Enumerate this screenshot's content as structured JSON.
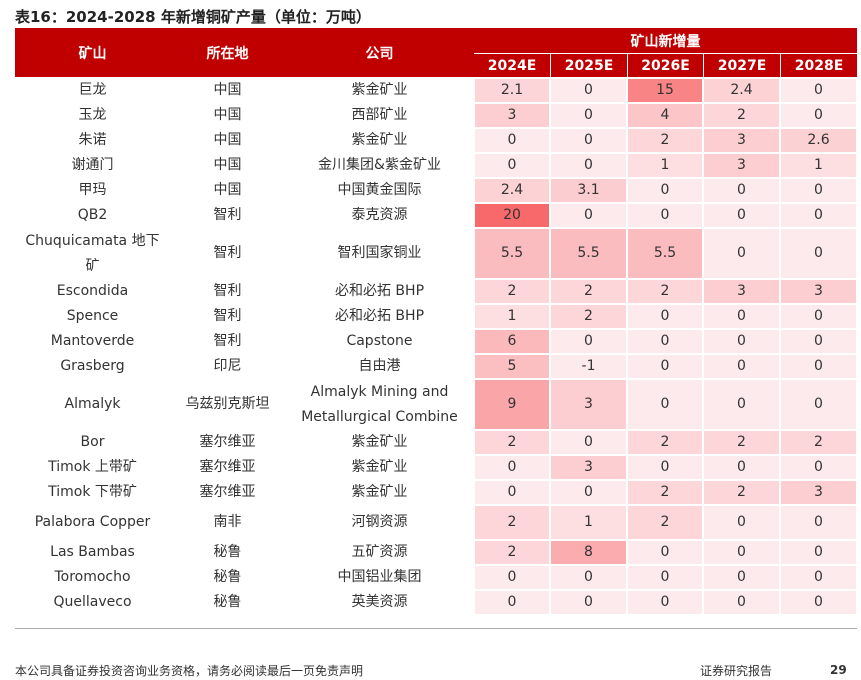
{
  "title": "表16：2024-2028 年新增铜矿产量（单位：万吨）",
  "table": {
    "columns": [
      "矿山",
      "所在地",
      "公司"
    ],
    "group_header": "矿山新增量",
    "years": [
      "2024E",
      "2025E",
      "2026E",
      "2027E",
      "2028E"
    ],
    "rows": [
      [
        "巨龙",
        "中国",
        "紫金矿业",
        2.1,
        0,
        15,
        2.4,
        0
      ],
      [
        "玉龙",
        "中国",
        "西部矿业",
        3,
        0,
        4,
        2,
        0
      ],
      [
        "朱诺",
        "中国",
        "紫金矿业",
        0,
        0,
        2,
        3,
        2.6
      ],
      [
        "谢通门",
        "中国",
        "金川集团&紫金矿业",
        0,
        0,
        1,
        3,
        1
      ],
      [
        "甲玛",
        "中国",
        "中国黄金国际",
        2.4,
        3.1,
        0,
        0,
        0
      ],
      [
        "QB2",
        "智利",
        "泰克资源",
        20,
        0,
        0,
        0,
        0
      ],
      [
        "Chuquicamata 地下矿",
        "智利",
        "智利国家铜业",
        5.5,
        5.5,
        5.5,
        0,
        0
      ],
      [
        "Escondida",
        "智利",
        "必和必拓 BHP",
        2,
        2,
        2,
        3,
        3
      ],
      [
        "Spence",
        "智利",
        "必和必拓 BHP",
        1,
        2,
        0,
        0,
        0
      ],
      [
        "Mantoverde",
        "智利",
        "Capstone",
        6,
        0,
        0,
        0,
        0
      ],
      [
        "Grasberg",
        "印尼",
        "自由港",
        5,
        -1,
        0,
        0,
        0
      ],
      [
        "Almalyk",
        "乌兹别克斯坦",
        "Almalyk Mining and Metallurgical Combine",
        9,
        3,
        0,
        0,
        0
      ],
      [
        "Bor",
        "塞尔维亚",
        "紫金矿业",
        2,
        0,
        2,
        2,
        2
      ],
      [
        "Timok 上带矿",
        "塞尔维亚",
        "紫金矿业",
        0,
        3,
        0,
        0,
        0
      ],
      [
        "Timok 下带矿",
        "塞尔维亚",
        "紫金矿业",
        0,
        0,
        2,
        2,
        3
      ],
      [
        "Palabora Copper",
        "南非",
        "河钢资源",
        2,
        1,
        2,
        0,
        0
      ],
      [
        "Las Bambas",
        "秘鲁",
        "五矿资源",
        2,
        8,
        0,
        0,
        0
      ],
      [
        "Toromocho",
        "秘鲁",
        "中国铝业集团",
        0,
        0,
        0,
        0,
        0
      ],
      [
        "Quellaveco",
        "秘鲁",
        "英美资源",
        0,
        0,
        0,
        0,
        0
      ]
    ]
  },
  "footer": {
    "disclaimer": "本公司具备证券投资咨询业务资格，请务必阅读最后一页免责声明",
    "report": "证券研究报告",
    "page": "29"
  }
}
